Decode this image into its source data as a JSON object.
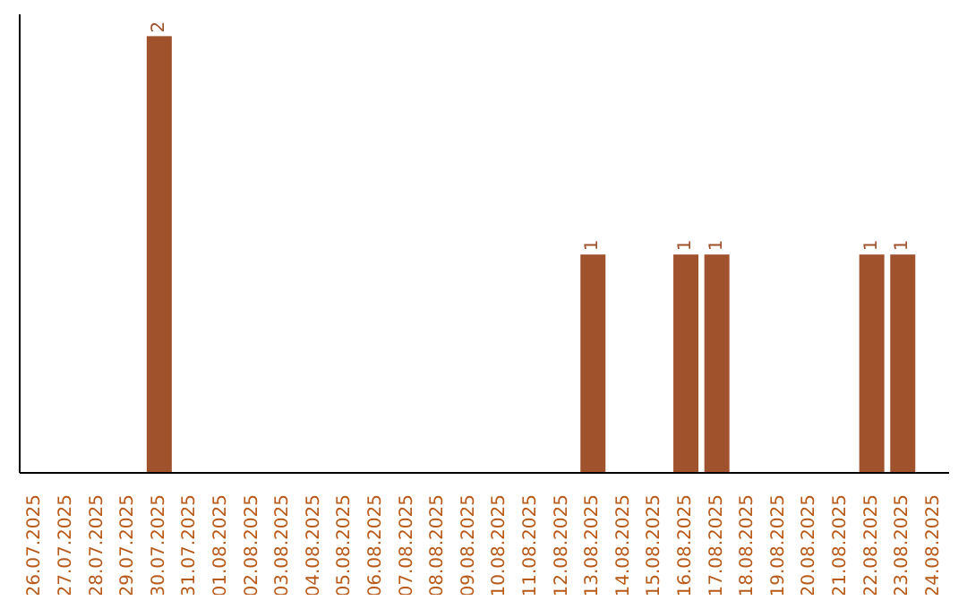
{
  "chart_data": {
    "type": "bar",
    "categories": [
      "26.07.2025",
      "27.07.2025",
      "28.07.2025",
      "29.07.2025",
      "30.07.2025",
      "31.07.2025",
      "01.08.2025",
      "02.08.2025",
      "03.08.2025",
      "04.08.2025",
      "05.08.2025",
      "06.08.2025",
      "07.08.2025",
      "08.08.2025",
      "09.08.2025",
      "10.08.2025",
      "11.08.2025",
      "12.08.2025",
      "13.08.2025",
      "14.08.2025",
      "15.08.2025",
      "16.08.2025",
      "17.08.2025",
      "18.08.2025",
      "19.08.2025",
      "20.08.2025",
      "21.08.2025",
      "22.08.2025",
      "23.08.2025",
      "24.08.2025"
    ],
    "values": [
      null,
      null,
      null,
      null,
      2,
      null,
      null,
      null,
      null,
      null,
      null,
      null,
      null,
      null,
      null,
      null,
      null,
      null,
      1,
      null,
      null,
      1,
      1,
      null,
      null,
      null,
      null,
      1,
      1,
      null
    ],
    "value_labels": [
      null,
      null,
      null,
      null,
      "2",
      null,
      null,
      null,
      null,
      null,
      null,
      null,
      null,
      null,
      null,
      null,
      null,
      null,
      "1",
      null,
      null,
      "1",
      "1",
      null,
      null,
      null,
      null,
      "1",
      "1",
      null
    ],
    "color": "#a0522d"
  }
}
